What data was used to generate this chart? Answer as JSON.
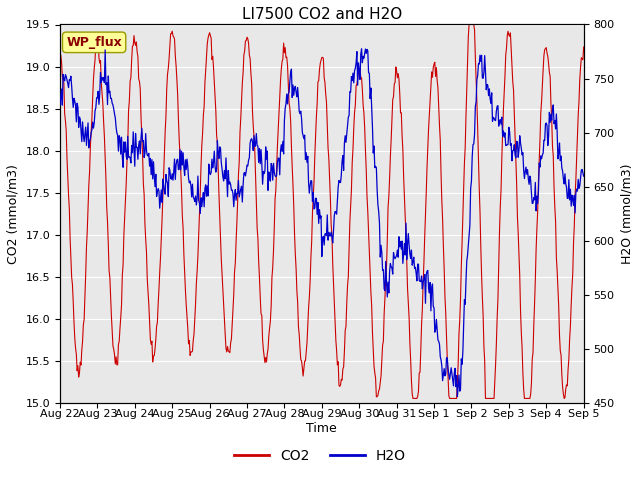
{
  "title": "LI7500 CO2 and H2O",
  "xlabel": "Time",
  "ylabel_left": "CO2 (mmol/m3)",
  "ylabel_right": "H2O (mmol/m3)",
  "co2_color": "#cc0000",
  "h2o_color": "#0000cc",
  "ylim_left": [
    15.0,
    19.5
  ],
  "ylim_right": [
    450,
    800
  ],
  "yticks_left": [
    15.0,
    15.5,
    16.0,
    16.5,
    17.0,
    17.5,
    18.0,
    18.5,
    19.0,
    19.5
  ],
  "yticks_right": [
    450,
    500,
    550,
    600,
    650,
    700,
    750,
    800
  ],
  "plot_bg_color": "#e8e8e8",
  "annotation_text": "WP_flux",
  "annotation_color": "#8b0000",
  "annotation_bg": "#ffff99",
  "legend_co2": "CO2",
  "legend_h2o": "H2O",
  "title_fontsize": 11,
  "label_fontsize": 9,
  "tick_fontsize": 8
}
